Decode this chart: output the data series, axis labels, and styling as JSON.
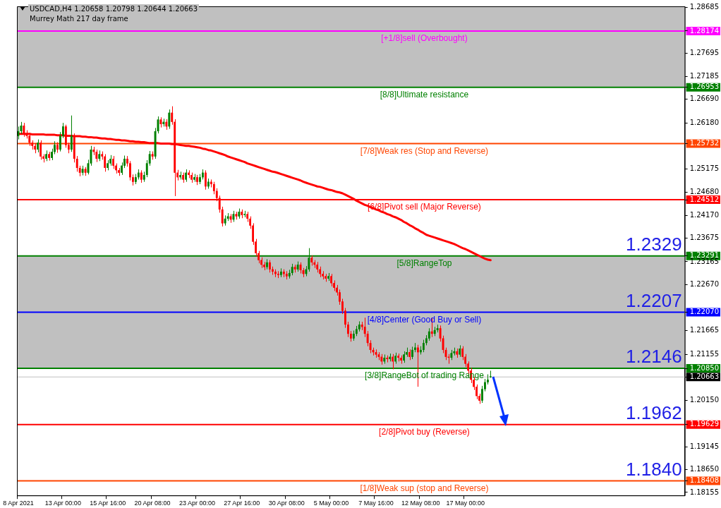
{
  "chart_data": {
    "type": "candlestick",
    "title": "USDCAD,H4 1.20658 1.20798 1.20644 1.20663",
    "subtitle": "Murrey Math 217 day frame",
    "categories": [
      "8 Apr 2021",
      null,
      null,
      null,
      null,
      null,
      null,
      null,
      null,
      null,
      null,
      null,
      null,
      null,
      null,
      null,
      "13 Apr 00:00",
      null,
      null,
      null,
      null,
      null,
      null,
      null,
      null,
      null,
      null,
      null,
      null,
      null,
      null,
      null,
      "15 Apr 16:00",
      null,
      null,
      null,
      null,
      null,
      null,
      null,
      null,
      null,
      null,
      null,
      null,
      null,
      null,
      null,
      "20 Apr 08:00",
      null,
      null,
      null,
      null,
      null,
      null,
      null,
      null,
      null,
      null,
      null,
      null,
      null,
      null,
      null,
      "23 Apr 00:00",
      null,
      null,
      null,
      null,
      null,
      null,
      null,
      null,
      null,
      null,
      null,
      null,
      null,
      null,
      null,
      "27 Apr 16:00",
      null,
      null,
      null,
      null,
      null,
      null,
      null,
      null,
      null,
      null,
      null,
      null,
      null,
      null,
      null,
      "30 Apr 08:00",
      null,
      null,
      null,
      null,
      null,
      null,
      null,
      null,
      null,
      null,
      null,
      null,
      null,
      null,
      null,
      "5 May 00:00",
      null,
      null,
      null,
      null,
      null,
      null,
      null,
      null,
      null,
      null,
      null,
      null,
      null,
      null,
      null,
      "7 May 16:00",
      null,
      null,
      null,
      null,
      null,
      null,
      null,
      null,
      null,
      null,
      null,
      null,
      null,
      null,
      null,
      "12 May 08:00",
      null,
      null,
      null,
      null,
      null,
      null,
      null,
      null,
      null,
      null,
      null,
      null,
      null,
      null,
      null,
      "17 May 00:00",
      null,
      null,
      null,
      null,
      null,
      null,
      null,
      null,
      null,
      null,
      null,
      null,
      null,
      null,
      null,
      null,
      null,
      null,
      null,
      null,
      null,
      null,
      null,
      null,
      null,
      null,
      null,
      null,
      null,
      null,
      null,
      null,
      null,
      null,
      null,
      null,
      null,
      null,
      null,
      null,
      null,
      null,
      null,
      null,
      null,
      null,
      null,
      null,
      null,
      null,
      null,
      null,
      null,
      null,
      null,
      null,
      null,
      null,
      null,
      null,
      null,
      null,
      null,
      null,
      null,
      null,
      null,
      null,
      null,
      null,
      null,
      null,
      null,
      null,
      null,
      null,
      null,
      null
    ],
    "ohlc": [
      [
        1.259,
        1.261,
        1.2582,
        1.26
      ],
      [
        1.26,
        1.262,
        1.2594,
        1.2612
      ],
      [
        1.2612,
        1.2618,
        1.2588,
        1.2595
      ],
      [
        1.2595,
        1.2602,
        1.2584,
        1.259
      ],
      [
        1.259,
        1.2596,
        1.2568,
        1.2575
      ],
      [
        1.2575,
        1.258,
        1.256,
        1.2568
      ],
      [
        1.2568,
        1.2574,
        1.2552,
        1.256
      ],
      [
        1.256,
        1.2582,
        1.2554,
        1.2575
      ],
      [
        1.2575,
        1.258,
        1.2538,
        1.2545
      ],
      [
        1.2545,
        1.255,
        1.2532,
        1.254
      ],
      [
        1.254,
        1.2558,
        1.2535,
        1.255
      ],
      [
        1.255,
        1.2555,
        1.2536,
        1.2542
      ],
      [
        1.2542,
        1.2562,
        1.2537,
        1.2555
      ],
      [
        1.2555,
        1.2578,
        1.255,
        1.257
      ],
      [
        1.257,
        1.2576,
        1.2553,
        1.256
      ],
      [
        1.256,
        1.2598,
        1.2556,
        1.259
      ],
      [
        1.259,
        1.2618,
        1.2585,
        1.261
      ],
      [
        1.261,
        1.2614,
        1.2564,
        1.257
      ],
      [
        1.257,
        1.2575,
        1.2552,
        1.256
      ],
      [
        1.256,
        1.2634,
        1.2555,
        1.259
      ],
      [
        1.259,
        1.2595,
        1.2532,
        1.254
      ],
      [
        1.254,
        1.2546,
        1.2512,
        1.252
      ],
      [
        1.252,
        1.2525,
        1.2502,
        1.251
      ],
      [
        1.251,
        1.2525,
        1.2504,
        1.2518
      ],
      [
        1.2518,
        1.2522,
        1.2503,
        1.251
      ],
      [
        1.251,
        1.2538,
        1.2506,
        1.253
      ],
      [
        1.253,
        1.2568,
        1.2525,
        1.256
      ],
      [
        1.256,
        1.2566,
        1.2548,
        1.2555
      ],
      [
        1.2555,
        1.256,
        1.2533,
        1.254
      ],
      [
        1.254,
        1.2558,
        1.2535,
        1.255
      ],
      [
        1.255,
        1.2556,
        1.2538,
        1.2545
      ],
      [
        1.2545,
        1.255,
        1.2512,
        1.252
      ],
      [
        1.252,
        1.2537,
        1.2515,
        1.253
      ],
      [
        1.253,
        1.2548,
        1.2525,
        1.254
      ],
      [
        1.254,
        1.2546,
        1.2518,
        1.2525
      ],
      [
        1.2525,
        1.253,
        1.2508,
        1.2515
      ],
      [
        1.2515,
        1.252,
        1.2503,
        1.251
      ],
      [
        1.251,
        1.2532,
        1.2505,
        1.2525
      ],
      [
        1.2525,
        1.2547,
        1.252,
        1.254
      ],
      [
        1.254,
        1.2546,
        1.2523,
        1.253
      ],
      [
        1.253,
        1.2535,
        1.2493,
        1.25
      ],
      [
        1.25,
        1.2506,
        1.2482,
        1.249
      ],
      [
        1.249,
        1.2507,
        1.2485,
        1.25
      ],
      [
        1.25,
        1.2517,
        1.2495,
        1.251
      ],
      [
        1.251,
        1.2515,
        1.2488,
        1.2495
      ],
      [
        1.2495,
        1.2512,
        1.249,
        1.2505
      ],
      [
        1.2505,
        1.2537,
        1.25,
        1.253
      ],
      [
        1.253,
        1.2557,
        1.2525,
        1.255
      ],
      [
        1.255,
        1.2556,
        1.2538,
        1.2545
      ],
      [
        1.2545,
        1.2607,
        1.254,
        1.26
      ],
      [
        1.26,
        1.2632,
        1.2595,
        1.2625
      ],
      [
        1.2625,
        1.263,
        1.2608,
        1.2615
      ],
      [
        1.2615,
        1.2627,
        1.261,
        1.262
      ],
      [
        1.262,
        1.2626,
        1.2603,
        1.261
      ],
      [
        1.261,
        1.2647,
        1.2605,
        1.264
      ],
      [
        1.264,
        1.2654,
        1.2614,
        1.262
      ],
      [
        1.262,
        1.2626,
        1.2459,
        1.251
      ],
      [
        1.251,
        1.2516,
        1.2493,
        1.25
      ],
      [
        1.25,
        1.2512,
        1.2495,
        1.2505
      ],
      [
        1.2505,
        1.251,
        1.2488,
        1.2495
      ],
      [
        1.2495,
        1.2517,
        1.249,
        1.251
      ],
      [
        1.251,
        1.2515,
        1.2498,
        1.2505
      ],
      [
        1.2505,
        1.251,
        1.2488,
        1.2495
      ],
      [
        1.2495,
        1.2507,
        1.249,
        1.25
      ],
      [
        1.25,
        1.2505,
        1.2483,
        1.249
      ],
      [
        1.249,
        1.2507,
        1.2485,
        1.25
      ],
      [
        1.25,
        1.2517,
        1.2495,
        1.251
      ],
      [
        1.251,
        1.2515,
        1.2473,
        1.248
      ],
      [
        1.248,
        1.2497,
        1.2475,
        1.249
      ],
      [
        1.249,
        1.2495,
        1.2478,
        1.2485
      ],
      [
        1.2485,
        1.249,
        1.2463,
        1.247
      ],
      [
        1.247,
        1.2476,
        1.2448,
        1.2455
      ],
      [
        1.2455,
        1.246,
        1.2423,
        1.243
      ],
      [
        1.243,
        1.2436,
        1.2393,
        1.24
      ],
      [
        1.24,
        1.2417,
        1.2395,
        1.241
      ],
      [
        1.241,
        1.2422,
        1.2405,
        1.2415
      ],
      [
        1.2415,
        1.242,
        1.2401,
        1.2408
      ],
      [
        1.2408,
        1.2427,
        1.2403,
        1.242
      ],
      [
        1.242,
        1.2425,
        1.2408,
        1.2415
      ],
      [
        1.2415,
        1.2432,
        1.241,
        1.2425
      ],
      [
        1.2425,
        1.243,
        1.2411,
        1.2418
      ],
      [
        1.2418,
        1.2427,
        1.2413,
        1.242
      ],
      [
        1.242,
        1.2425,
        1.2403,
        1.241
      ],
      [
        1.241,
        1.2415,
        1.2388,
        1.2395
      ],
      [
        1.2395,
        1.24,
        1.2353,
        1.236
      ],
      [
        1.236,
        1.2366,
        1.2328,
        1.2335
      ],
      [
        1.2335,
        1.234,
        1.2313,
        1.232
      ],
      [
        1.232,
        1.2326,
        1.2303,
        1.231
      ],
      [
        1.231,
        1.2316,
        1.2298,
        1.2305
      ],
      [
        1.2305,
        1.2322,
        1.23,
        1.2315
      ],
      [
        1.2315,
        1.232,
        1.2293,
        1.23
      ],
      [
        1.23,
        1.2306,
        1.2288,
        1.2295
      ],
      [
        1.2295,
        1.23,
        1.2283,
        1.229
      ],
      [
        1.229,
        1.2296,
        1.2281,
        1.2288
      ],
      [
        1.2288,
        1.2302,
        1.2283,
        1.2295
      ],
      [
        1.2295,
        1.23,
        1.2283,
        1.229
      ],
      [
        1.229,
        1.2296,
        1.2278,
        1.2285
      ],
      [
        1.2285,
        1.2299,
        1.228,
        1.2292
      ],
      [
        1.2292,
        1.2312,
        1.2287,
        1.2305
      ],
      [
        1.2305,
        1.231,
        1.2293,
        1.23
      ],
      [
        1.23,
        1.2317,
        1.2295,
        1.231
      ],
      [
        1.231,
        1.2315,
        1.2291,
        1.2298
      ],
      [
        1.2298,
        1.2303,
        1.2283,
        1.229
      ],
      [
        1.229,
        1.2307,
        1.2285,
        1.23
      ],
      [
        1.23,
        1.2346,
        1.2295,
        1.2325
      ],
      [
        1.2325,
        1.233,
        1.2308,
        1.2315
      ],
      [
        1.2315,
        1.232,
        1.2303,
        1.231
      ],
      [
        1.231,
        1.2316,
        1.2293,
        1.23
      ],
      [
        1.23,
        1.2306,
        1.2283,
        1.229
      ],
      [
        1.229,
        1.2296,
        1.2278,
        1.2285
      ],
      [
        1.2285,
        1.229,
        1.2273,
        1.228
      ],
      [
        1.228,
        1.2292,
        1.2275,
        1.2285
      ],
      [
        1.2285,
        1.229,
        1.2263,
        1.227
      ],
      [
        1.227,
        1.2276,
        1.2253,
        1.226
      ],
      [
        1.226,
        1.2266,
        1.2243,
        1.225
      ],
      [
        1.225,
        1.2256,
        1.2223,
        1.223
      ],
      [
        1.223,
        1.2236,
        1.2203,
        1.221
      ],
      [
        1.221,
        1.2216,
        1.2173,
        1.218
      ],
      [
        1.218,
        1.2186,
        1.2153,
        1.216
      ],
      [
        1.216,
        1.2166,
        1.2143,
        1.215
      ],
      [
        1.215,
        1.2167,
        1.2145,
        1.216
      ],
      [
        1.216,
        1.2177,
        1.2155,
        1.217
      ],
      [
        1.217,
        1.2187,
        1.2165,
        1.218
      ],
      [
        1.218,
        1.2186,
        1.2168,
        1.2175
      ],
      [
        1.2175,
        1.2195,
        1.2153,
        1.216
      ],
      [
        1.216,
        1.2166,
        1.2133,
        1.214
      ],
      [
        1.214,
        1.2146,
        1.2118,
        1.2125
      ],
      [
        1.2125,
        1.213,
        1.2113,
        1.212
      ],
      [
        1.212,
        1.2126,
        1.2108,
        1.2115
      ],
      [
        1.2115,
        1.212,
        1.2103,
        1.211
      ],
      [
        1.211,
        1.2116,
        1.2093,
        1.21
      ],
      [
        1.21,
        1.2115,
        1.2095,
        1.2108
      ],
      [
        1.2108,
        1.2113,
        1.2098,
        1.2105
      ],
      [
        1.2105,
        1.2117,
        1.21,
        1.211
      ],
      [
        1.211,
        1.2116,
        1.2083,
        1.21
      ],
      [
        1.21,
        1.2119,
        1.2095,
        1.2112
      ],
      [
        1.2112,
        1.2117,
        1.21,
        1.2108
      ],
      [
        1.2108,
        1.2113,
        1.2095,
        1.2102
      ],
      [
        1.2102,
        1.2122,
        1.2097,
        1.2115
      ],
      [
        1.2115,
        1.213,
        1.211,
        1.212
      ],
      [
        1.212,
        1.2126,
        1.2103,
        1.211
      ],
      [
        1.211,
        1.2132,
        1.2105,
        1.2125
      ],
      [
        1.2125,
        1.214,
        1.212,
        1.213
      ],
      [
        1.213,
        1.2136,
        1.2045,
        1.212
      ],
      [
        1.212,
        1.2133,
        1.2115,
        1.2125
      ],
      [
        1.2125,
        1.2147,
        1.212,
        1.214
      ],
      [
        1.214,
        1.2157,
        1.2135,
        1.215
      ],
      [
        1.215,
        1.2172,
        1.2145,
        1.2165
      ],
      [
        1.2165,
        1.2195,
        1.2153,
        1.216
      ],
      [
        1.216,
        1.2175,
        1.2155,
        1.2168
      ],
      [
        1.2168,
        1.218,
        1.2163,
        1.2172
      ],
      [
        1.2172,
        1.2178,
        1.2143,
        1.215
      ],
      [
        1.215,
        1.2156,
        1.2118,
        1.2125
      ],
      [
        1.2125,
        1.213,
        1.2103,
        1.211
      ],
      [
        1.211,
        1.2116,
        1.2095,
        1.2108
      ],
      [
        1.2108,
        1.2125,
        1.2103,
        1.2118
      ],
      [
        1.2118,
        1.213,
        1.2113,
        1.2122
      ],
      [
        1.2122,
        1.2128,
        1.2108,
        1.2115
      ],
      [
        1.2115,
        1.2135,
        1.211,
        1.2128
      ],
      [
        1.2128,
        1.2133,
        1.2103,
        1.211
      ],
      [
        1.211,
        1.2116,
        1.2088,
        1.2095
      ],
      [
        1.2095,
        1.21,
        1.2073,
        1.208
      ],
      [
        1.208,
        1.2086,
        1.2053,
        1.206
      ],
      [
        1.206,
        1.2066,
        1.2038,
        1.2045
      ],
      [
        1.2045,
        1.205,
        1.2018,
        1.2025
      ],
      [
        1.2025,
        1.203,
        1.2008,
        1.2015
      ],
      [
        1.2015,
        1.2047,
        1.201,
        1.204
      ],
      [
        1.204,
        1.2062,
        1.2035,
        1.2055
      ],
      [
        1.2055,
        1.2072,
        1.205,
        1.206
      ],
      [
        1.20658,
        1.20798,
        1.20644,
        1.20663
      ],
      null,
      null,
      null,
      null,
      null,
      null,
      null,
      null,
      null,
      null,
      null,
      null,
      null,
      null,
      null,
      null,
      null,
      null,
      null,
      null,
      null,
      null,
      null,
      null,
      null,
      null,
      null,
      null,
      null,
      null,
      null,
      null,
      null,
      null,
      null,
      null,
      null,
      null,
      null,
      null,
      null,
      null,
      null,
      null,
      null,
      null,
      null,
      null,
      null,
      null,
      null,
      null,
      null,
      null,
      null,
      null,
      null,
      null,
      null,
      null,
      null,
      null,
      null,
      null,
      null,
      null,
      null,
      null,
      null
    ],
    "series": [
      {
        "type": "line",
        "color": "#ff0000",
        "values": [
          1.2594,
          1.2594,
          1.2594,
          1.2594,
          1.2594,
          1.2593,
          1.2593,
          1.2593,
          1.2593,
          1.2593,
          1.2592,
          1.2592,
          1.2592,
          1.2592,
          1.2591,
          1.2591,
          1.2591,
          1.259,
          1.259,
          1.259,
          1.2589,
          1.2589,
          1.2589,
          1.2588,
          1.2588,
          1.2587,
          1.2587,
          1.2586,
          1.2586,
          1.2585,
          1.2584,
          1.2584,
          1.2583,
          1.2583,
          1.2582,
          1.2581,
          1.2581,
          1.258,
          1.258,
          1.2579,
          1.2578,
          1.2578,
          1.2577,
          1.2577,
          1.2576,
          1.2576,
          1.2575,
          1.2574,
          1.2574,
          1.2574,
          1.2574,
          1.2573,
          1.2573,
          1.2573,
          1.2573,
          1.2572,
          1.2572,
          1.2571,
          1.257,
          1.2569,
          1.2568,
          1.2568,
          1.2567,
          1.2566,
          1.2565,
          1.2564,
          1.2562,
          1.2561,
          1.2559,
          1.2558,
          1.2556,
          1.2554,
          1.2552,
          1.255,
          1.2548,
          1.2545,
          1.2543,
          1.2541,
          1.2539,
          1.2537,
          1.2535,
          1.2533,
          1.253,
          1.2528,
          1.2526,
          1.2524,
          1.2522,
          1.252,
          1.2518,
          1.2516,
          1.2514,
          1.2512,
          1.2511,
          1.2509,
          1.2507,
          1.2505,
          1.2503,
          1.2501,
          1.2499,
          1.2497,
          1.2495,
          1.2493,
          1.249,
          1.2488,
          1.2486,
          1.2484,
          1.2482,
          1.248,
          1.2479,
          1.2477,
          1.2475,
          1.2473,
          1.2472,
          1.247,
          1.2468,
          1.2467,
          1.2465,
          1.2462,
          1.2459,
          1.2456,
          1.2453,
          1.2449,
          1.2446,
          1.2443,
          1.244,
          1.2438,
          1.2435,
          1.2433,
          1.243,
          1.2428,
          1.2425,
          1.2423,
          1.242,
          1.2418,
          1.2415,
          1.2413,
          1.241,
          1.2407,
          1.2403,
          1.24,
          1.2396,
          1.2393,
          1.2389,
          1.2386,
          1.2382,
          1.2379,
          1.2375,
          1.2373,
          1.2371,
          1.2369,
          1.2367,
          1.2365,
          1.2363,
          1.2361,
          1.2359,
          1.2357,
          1.2355,
          1.2352,
          1.2349,
          1.2346,
          1.2344,
          1.2341,
          1.2338,
          1.2335,
          1.2332,
          1.2329,
          1.2326,
          1.2323,
          1.2321,
          1.232,
          null,
          null,
          null,
          null,
          null,
          null,
          null,
          null,
          null,
          null,
          null,
          null,
          null,
          null,
          null,
          null,
          null,
          null,
          null,
          null,
          null,
          null,
          null,
          null,
          null,
          null,
          null,
          null,
          null,
          null,
          null,
          null,
          null,
          null,
          null,
          null,
          null,
          null,
          null,
          null,
          null,
          null,
          null,
          null,
          null,
          null,
          null,
          null,
          null,
          null,
          null,
          null,
          null,
          null,
          null,
          null,
          null,
          null,
          null,
          null,
          null,
          null,
          null,
          null,
          null,
          null,
          null,
          null,
          null
        ]
      }
    ],
    "ylim": [
      1.1809,
      1.2871
    ],
    "yticks": [
      1.28685,
      1.28174,
      1.27695,
      1.27185,
      1.26953,
      {
        "value": 1.2669,
        "label": "1.26690"
      },
      {
        "value": 1.2618,
        "label": "1.26180"
      },
      1.25732,
      1.25175,
      {
        "value": 1.2468,
        "label": "1.24680"
      },
      1.24512,
      {
        "value": 1.2417,
        "label": "1.24170"
      },
      1.23675,
      1.23291,
      1.23165,
      {
        "value": 1.2267,
        "label": "1.22670"
      },
      {
        "value": 1.2207,
        "label": "1.22070"
      },
      1.21665,
      1.21155,
      {
        "value": 1.2085,
        "label": "1.20850"
      },
      1.20663,
      {
        "value": 1.2015,
        "label": "1.20150"
      },
      1.19629,
      1.19145,
      {
        "value": 1.1865,
        "label": "1.18650"
      },
      1.18408,
      1.18155
    ],
    "bands": [
      {
        "axis": "y",
        "from": 1.26953,
        "to": 1.2871,
        "color": "#c0c0c0"
      },
      {
        "axis": "y",
        "from": 1.2085,
        "to": 1.23291,
        "color": "#c0c0c0"
      }
    ],
    "ref_lines": [
      {
        "axis": "y",
        "value": 1.28174,
        "label": "[+1/8]sell (Overbought)",
        "color": "#ff00ff"
      },
      {
        "axis": "y",
        "value": 1.26953,
        "label": "[8/8]Ultimate resistance",
        "color": "#008000"
      },
      {
        "axis": "y",
        "value": 1.25732,
        "label": "[7/8]Weak res (Stop and Reverse)",
        "color": "#ff4500"
      },
      {
        "axis": "y",
        "value": 1.24512,
        "label": "[6/8]Pivot sell (Major Reverse)",
        "color": "#ff0000"
      },
      {
        "axis": "y",
        "value": 1.23291,
        "label": "[5/8]RangeTop",
        "color": "#008000"
      },
      {
        "axis": "y",
        "value": 1.2207,
        "label": "[4/8]Center (Good Buy or Sell)",
        "color": "#0000ff"
      },
      {
        "axis": "y",
        "value": 1.2085,
        "label": "[3/8]RangeBot of trading Range",
        "color": "#008000"
      },
      {
        "axis": "y",
        "value": 1.20663,
        "label": null,
        "color": "#c0c0c0"
      },
      {
        "axis": "y",
        "value": 1.19629,
        "label": "[2/8]Pivot buy (Reverse)",
        "color": "#ff0000"
      },
      {
        "axis": "y",
        "value": 1.18408,
        "label": "[1/8]Weak sup (stop and Reverse)",
        "color": "#ff4500"
      }
    ],
    "annotations": [
      {
        "text": "1.2329",
        "y": 1.23291
      },
      {
        "text": "1.2207",
        "y": 1.2207
      },
      {
        "text": "1.2146",
        "y": 1.2085
      },
      {
        "text": "1.1962",
        "y": 1.19629
      },
      {
        "text": "1.1840",
        "y": 1.18408
      }
    ],
    "legend": false,
    "grid": false
  }
}
